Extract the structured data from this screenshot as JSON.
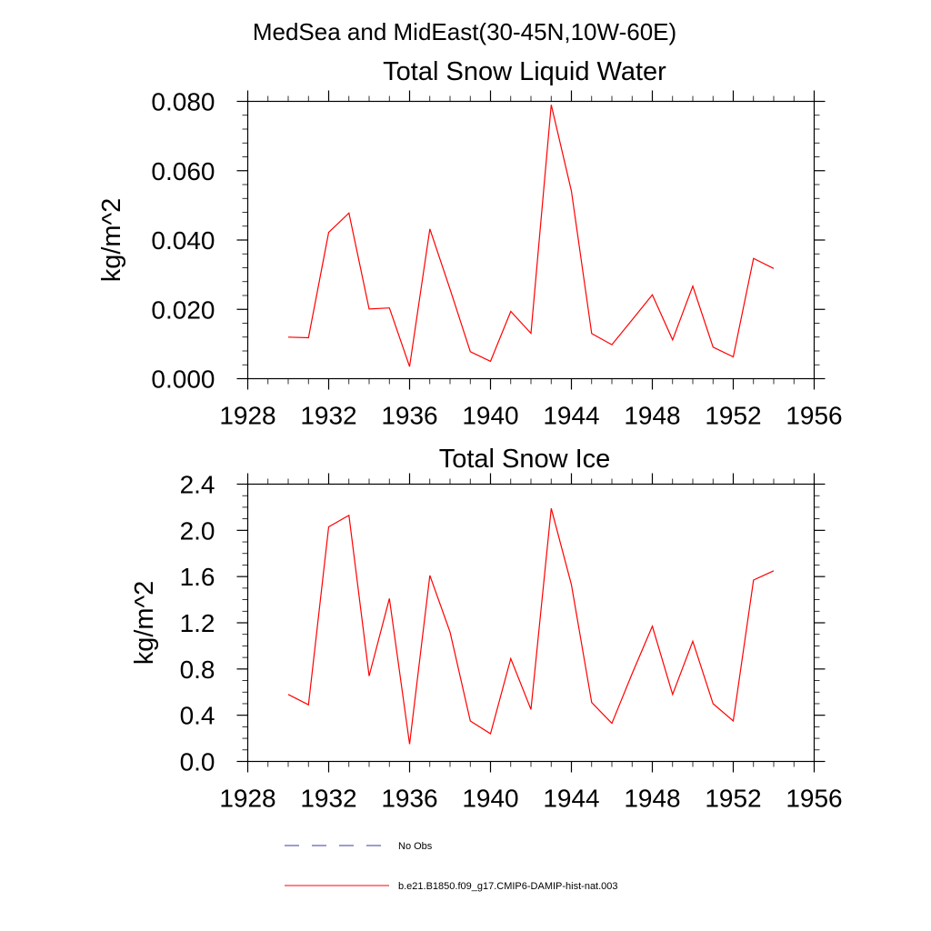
{
  "figure": {
    "title": "MedSea and MidEast(30-45N,10W-60E)"
  },
  "legend": [
    {
      "label": "No Obs",
      "color": "#3b3b9c",
      "dash": true
    },
    {
      "label": "b.e21.B1850.f09_g17.CMIP6-DAMIP-hist-nat.003",
      "color": "#ff0000",
      "dash": false
    }
  ],
  "chart_data": [
    {
      "type": "line",
      "title": "Total Snow Liquid Water",
      "xlabel": "",
      "ylabel": "kg/m^2",
      "xlim": [
        1928,
        1956
      ],
      "ylim": [
        0,
        0.08
      ],
      "xticks": [
        "1928",
        "1932",
        "1936",
        "1940",
        "1944",
        "1948",
        "1952",
        "1956"
      ],
      "yticks": [
        "0.000",
        "0.020",
        "0.040",
        "0.060",
        "0.080"
      ],
      "grid": false,
      "x": [
        1930,
        1931,
        1932,
        1933,
        1934,
        1935,
        1936,
        1937,
        1938,
        1939,
        1940,
        1941,
        1942,
        1943,
        1944,
        1945,
        1946,
        1947,
        1948,
        1949,
        1950,
        1951,
        1952,
        1953,
        1954
      ],
      "series": [
        {
          "name": "b.e21.B1850.f09_g17.CMIP6-DAMIP-hist-nat.003",
          "color": "#ff0000",
          "values": [
            0.012,
            0.0118,
            0.0422,
            0.0478,
            0.0201,
            0.0204,
            0.0035,
            0.0432,
            0.0258,
            0.0078,
            0.005,
            0.0194,
            0.0131,
            0.079,
            0.0541,
            0.013,
            0.0098,
            0.017,
            0.0242,
            0.0112,
            0.0267,
            0.0091,
            0.0063,
            0.0347,
            0.0318
          ]
        }
      ]
    },
    {
      "type": "line",
      "title": "Total Snow Ice",
      "xlabel": "",
      "ylabel": "kg/m^2",
      "xlim": [
        1928,
        1956
      ],
      "ylim": [
        0,
        2.4
      ],
      "xticks": [
        "1928",
        "1932",
        "1936",
        "1940",
        "1944",
        "1948",
        "1952",
        "1956"
      ],
      "yticks": [
        "0.0",
        "0.4",
        "0.8",
        "1.2",
        "1.6",
        "2.0",
        "2.4"
      ],
      "grid": false,
      "x": [
        1930,
        1931,
        1932,
        1933,
        1934,
        1935,
        1936,
        1937,
        1938,
        1939,
        1940,
        1941,
        1942,
        1943,
        1944,
        1945,
        1946,
        1947,
        1948,
        1949,
        1950,
        1951,
        1952,
        1953,
        1954
      ],
      "series": [
        {
          "name": "b.e21.B1850.f09_g17.CMIP6-DAMIP-hist-nat.003",
          "color": "#ff0000",
          "values": [
            0.58,
            0.49,
            2.03,
            2.13,
            0.74,
            1.41,
            0.15,
            1.61,
            1.12,
            0.35,
            0.24,
            0.89,
            0.45,
            2.19,
            1.53,
            0.51,
            0.33,
            0.76,
            1.17,
            0.58,
            1.04,
            0.5,
            0.35,
            1.57,
            1.65
          ]
        }
      ]
    }
  ]
}
